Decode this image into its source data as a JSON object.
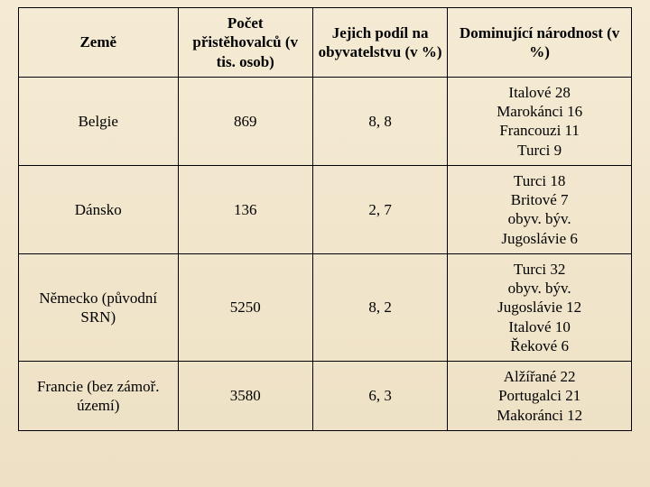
{
  "table": {
    "background_gradient": [
      "#f5ebd4",
      "#ede0c4"
    ],
    "border_color": "#000000",
    "font_family": "Times New Roman",
    "header_fontsize": 17,
    "cell_fontsize": 17,
    "columns": [
      {
        "key": "zeme",
        "label": "Země",
        "width_pct": 26,
        "align": "center"
      },
      {
        "key": "pocet",
        "label": "Počet přistěhovalců (v tis. osob)",
        "width_pct": 22,
        "align": "center"
      },
      {
        "key": "podil",
        "label": "Jejich podíl na obyvatelstvu (v %)",
        "width_pct": 22,
        "align": "center"
      },
      {
        "key": "narodnost",
        "label": "Dominující národnost (v %)",
        "width_pct": 30,
        "align": "center"
      }
    ],
    "rows": [
      {
        "zeme": "Belgie",
        "pocet": "869",
        "podil": "8, 8",
        "narodnost": "Italové 28\nMarokánci 16\nFrancouzi 11\nTurci 9"
      },
      {
        "zeme": "Dánsko",
        "pocet": "136",
        "podil": "2, 7",
        "narodnost": "Turci 18\nBritové 7\nobyv. býv.\nJugoslávie 6"
      },
      {
        "zeme": "Německo (původní SRN)",
        "pocet": "5250",
        "podil": "8, 2",
        "narodnost": "Turci 32\nobyv. býv.\nJugoslávie 12\nItalové 10\nŘekové 6"
      },
      {
        "zeme": "Francie (bez zámoř. území)",
        "pocet": "3580",
        "podil": "6, 3",
        "narodnost": "Alžířané 22\nPortugalci 21\nMakoránci 12"
      }
    ]
  }
}
